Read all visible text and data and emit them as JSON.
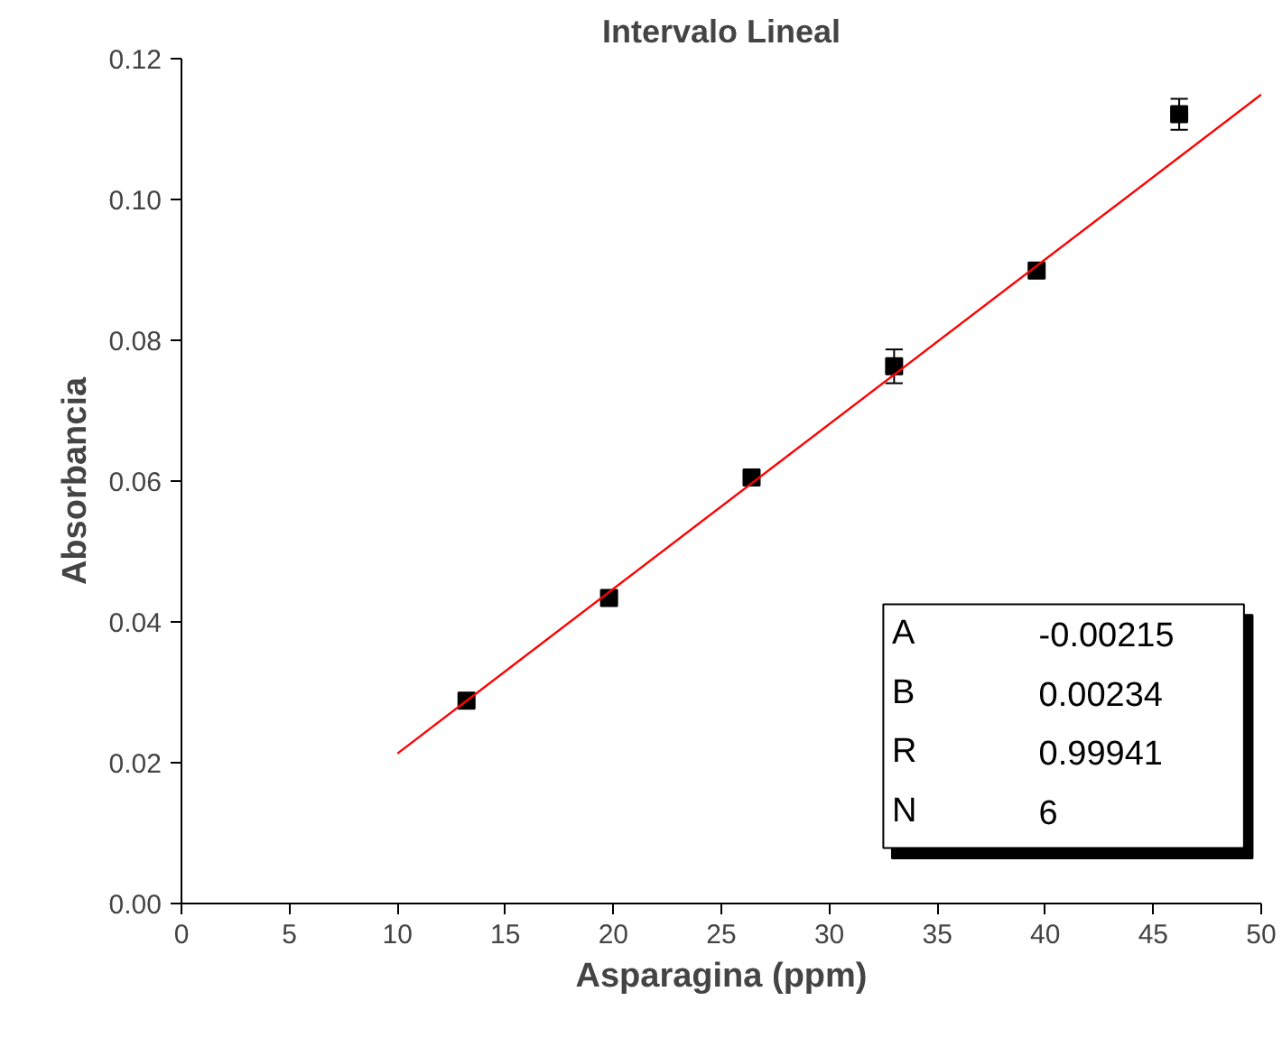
{
  "chart_data": {
    "type": "scatter",
    "title": "Intervalo Lineal",
    "xlabel": "Asparagina (ppm)",
    "ylabel": "Absorbancia",
    "xlim": [
      0,
      50
    ],
    "xticks": [
      0,
      5,
      10,
      15,
      20,
      25,
      30,
      35,
      40,
      45,
      50
    ],
    "ylim": [
      0,
      0.12
    ],
    "yticks": [
      {
        "value": 0,
        "label": "0.00"
      },
      {
        "value": 0.02,
        "label": "0.02"
      },
      {
        "value": 0.04,
        "label": "0.04"
      },
      {
        "value": 0.06,
        "label": "0.06"
      },
      {
        "value": 0.08,
        "label": "0.08"
      },
      {
        "value": 0.1,
        "label": "0.10"
      },
      {
        "value": 0.12,
        "label": "0.12"
      }
    ],
    "grid": false,
    "marker": "square",
    "series": [
      {
        "color": "#000000",
        "x": [
          13.2,
          19.8,
          26.4,
          33.0,
          39.6,
          46.2
        ],
        "values": [
          0.0288,
          0.0434,
          0.0605,
          0.0763,
          0.0899,
          0.1121
        ],
        "errors": [
          null,
          null,
          null,
          0.0024,
          null,
          0.0022
        ]
      },
      {
        "type": "line",
        "color": "#ff0000",
        "line_style": "solid",
        "marker": "none",
        "x": [
          10,
          50
        ],
        "values": [
          0.0213,
          0.1149
        ]
      }
    ],
    "annotations": [
      "A",
      "-0.00215",
      "B",
      "0.00234",
      "R",
      "0.99941",
      "N",
      "6"
    ]
  }
}
